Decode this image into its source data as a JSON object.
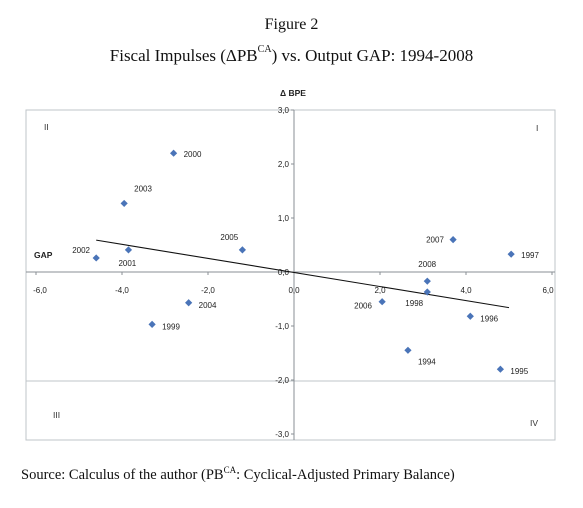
{
  "figure": {
    "title": "Figure 2",
    "subtitle_main": "Fiscal Impulses (ΔPB",
    "subtitle_sup": "CA",
    "subtitle_rest": ") vs. Output GAP: 1994-2008",
    "source_main": "Source: Calculus of the author (PB",
    "source_sup": "CA",
    "source_rest": ": Cyclical-Adjusted Primary Balance)"
  },
  "chart_data": {
    "type": "scatter",
    "xlabel": "GAP",
    "ylabel": "Δ BPE",
    "xlim": [
      -6,
      6
    ],
    "ylim": [
      -3,
      3
    ],
    "x_ticks": [
      "-6,0",
      "-4,0",
      "-2,0",
      "0,0",
      "2,0",
      "4,0",
      "6,0"
    ],
    "y_ticks": [
      "3,0",
      "2,0",
      "1,0",
      "0,0",
      "-1,0",
      "-2,0",
      "-3,0"
    ],
    "quadrant_labels": {
      "top_left": "II",
      "top_right": "I",
      "bottom_left": "III",
      "bottom_right": "IV"
    },
    "marker_color": "#4a74b8",
    "points": [
      {
        "year": "1994",
        "x": 2.65,
        "y": -1.45
      },
      {
        "year": "1995",
        "x": 4.8,
        "y": -1.8
      },
      {
        "year": "1996",
        "x": 4.1,
        "y": -0.82
      },
      {
        "year": "1997",
        "x": 5.05,
        "y": 0.33
      },
      {
        "year": "1998",
        "x": 3.1,
        "y": -0.37
      },
      {
        "year": "1999",
        "x": -3.3,
        "y": -0.97
      },
      {
        "year": "2000",
        "x": -2.8,
        "y": 2.2
      },
      {
        "year": "2001",
        "x": -3.85,
        "y": 0.41
      },
      {
        "year": "2002",
        "x": -4.6,
        "y": 0.26
      },
      {
        "year": "2003",
        "x": -3.95,
        "y": 1.27
      },
      {
        "year": "2004",
        "x": -2.45,
        "y": -0.57
      },
      {
        "year": "2005",
        "x": -1.2,
        "y": 0.41
      },
      {
        "year": "2006",
        "x": 2.05,
        "y": -0.55
      },
      {
        "year": "2007",
        "x": 3.7,
        "y": 0.6
      },
      {
        "year": "2008",
        "x": 3.1,
        "y": -0.17
      }
    ],
    "trendline": {
      "x": [
        -4.6,
        5.0
      ],
      "y": [
        0.59,
        -0.66
      ]
    }
  }
}
